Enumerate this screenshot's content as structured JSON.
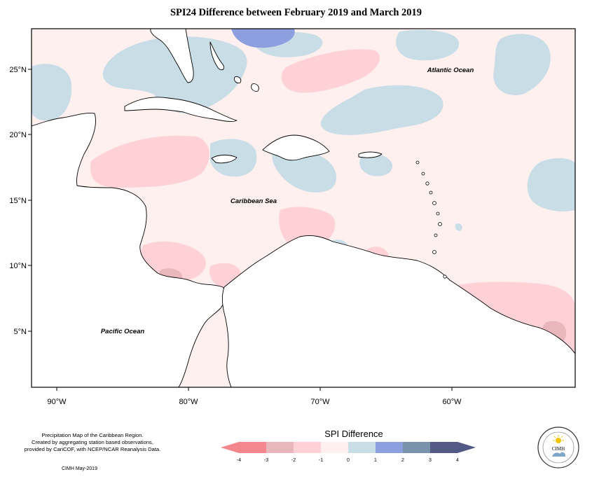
{
  "title": "SPI24 Difference between February 2019 and March 2019",
  "map": {
    "lat_labels": [
      "25°N",
      "20°N",
      "15°N",
      "10°N",
      "5°N"
    ],
    "lon_labels": [
      "90°W",
      "80°W",
      "70°W",
      "60°W"
    ],
    "ocean_labels": {
      "atlantic": "Atlantic Ocean",
      "caribbean": "Caribbean Sea",
      "pacific": "Pacific Ocean"
    }
  },
  "legend": {
    "title": "SPI Difference",
    "tick_labels": [
      "-4",
      "-3",
      "-2",
      "-1",
      "0",
      "1",
      "2",
      "3",
      "4"
    ],
    "colors": [
      "#f4868e",
      "#e8b6bb",
      "#fdd1d6",
      "#fff0f0",
      "#c8dde6",
      "#8e9fe0",
      "#7893aa",
      "#535a85"
    ]
  },
  "credit": {
    "line1": "Precipitation Map of the Caribbean Region.",
    "line2": "Created by aggregating station based observations,",
    "line3": "provided by CariCOF, with NCEP/NCAR Reanalysis Data."
  },
  "stamp": "CIMH May-2019",
  "logo": {
    "text": "CIMH",
    "icon": "sun-cloud-icon"
  }
}
